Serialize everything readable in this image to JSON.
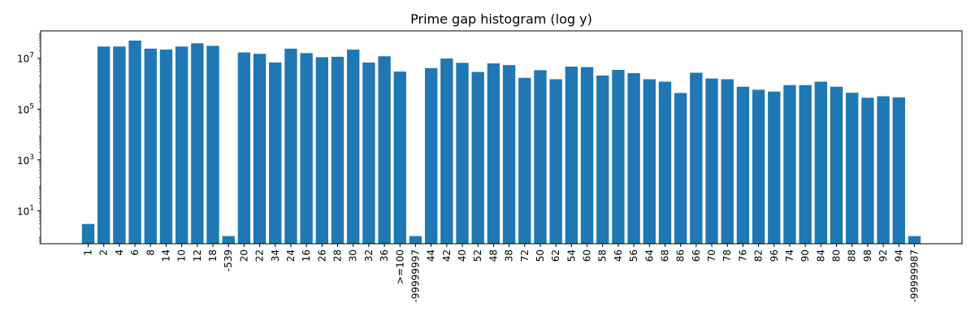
{
  "chart_data": {
    "type": "bar",
    "title": "Prime gap histogram (log y)",
    "xlabel": "",
    "ylabel": "",
    "yscale": "log",
    "ylim": [
      0.5,
      120000000
    ],
    "y_ticks": [
      {
        "value": 10,
        "base": "10",
        "exp": "1"
      },
      {
        "value": 1000,
        "base": "10",
        "exp": "3"
      },
      {
        "value": 100000,
        "base": "10",
        "exp": "5"
      },
      {
        "value": 10000000,
        "base": "10",
        "exp": "7"
      }
    ],
    "bar_color": "#1f77b4",
    "grid": false,
    "categories": [
      "1",
      "2",
      "4",
      "6",
      "8",
      "14",
      "10",
      "12",
      "18",
      "-539",
      "20",
      "22",
      "34",
      "24",
      "16",
      "26",
      "28",
      "30",
      "32",
      "36",
      ">=100",
      "-99999997",
      "44",
      "42",
      "40",
      "52",
      "48",
      "38",
      "72",
      "50",
      "62",
      "54",
      "60",
      "58",
      "46",
      "56",
      "64",
      "68",
      "86",
      "66",
      "70",
      "78",
      "76",
      "82",
      "96",
      "74",
      "90",
      "84",
      "80",
      "88",
      "98",
      "92",
      "94",
      "-99999987"
    ],
    "values": [
      3,
      29000000,
      29000000,
      50000000,
      24000000,
      22000000,
      29000000,
      39000000,
      31000000,
      1,
      17000000,
      15000000,
      6800000,
      24000000,
      16000000,
      11000000,
      11500000,
      22000000,
      6800000,
      12000000,
      3000000,
      1,
      4100000,
      9800000,
      6600000,
      2900000,
      6300000,
      5400000,
      1700000,
      3400000,
      1500000,
      4700000,
      4500000,
      2100000,
      3500000,
      2600000,
      1500000,
      1200000,
      430000,
      2700000,
      1600000,
      1500000,
      760000,
      580000,
      490000,
      880000,
      880000,
      1200000,
      760000,
      440000,
      280000,
      320000,
      290000,
      1
    ]
  }
}
